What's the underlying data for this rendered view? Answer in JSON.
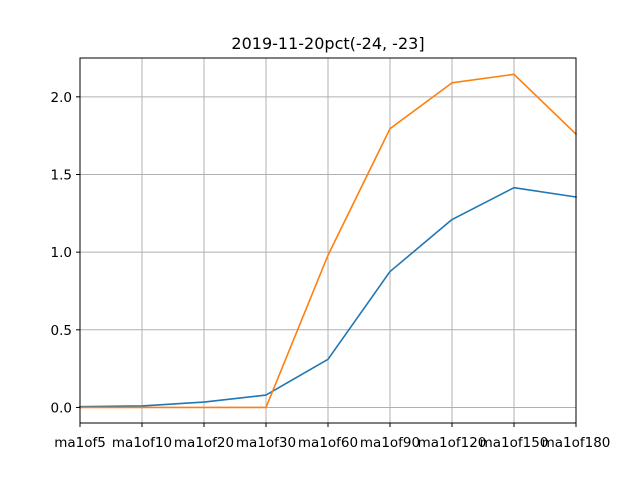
{
  "chart_data": {
    "type": "line",
    "title": "2019-11-20pct(-24, -23]",
    "xlabel": "",
    "ylabel": "",
    "categories": [
      "ma1of5",
      "ma1of10",
      "ma1of20",
      "ma1of30",
      "ma1of60",
      "ma1of90",
      "ma1of120",
      "ma1of150",
      "ma1of180"
    ],
    "series": [
      {
        "values": [
          0.005,
          0.01,
          0.035,
          0.08,
          0.31,
          0.875,
          1.21,
          1.415,
          1.355
        ],
        "color": "#1f77b4"
      },
      {
        "values": [
          0.0,
          0.0,
          0.0,
          0.0,
          0.98,
          1.795,
          2.09,
          2.145,
          1.76
        ],
        "color": "#ff7f0e"
      }
    ],
    "yticks": [
      0.0,
      0.5,
      1.0,
      1.5,
      2.0
    ],
    "ytick_labels": [
      "0.0",
      "0.5",
      "1.0",
      "1.5",
      "2.0"
    ],
    "ylim": [
      -0.1,
      2.25
    ],
    "grid": true,
    "legend": "none"
  }
}
